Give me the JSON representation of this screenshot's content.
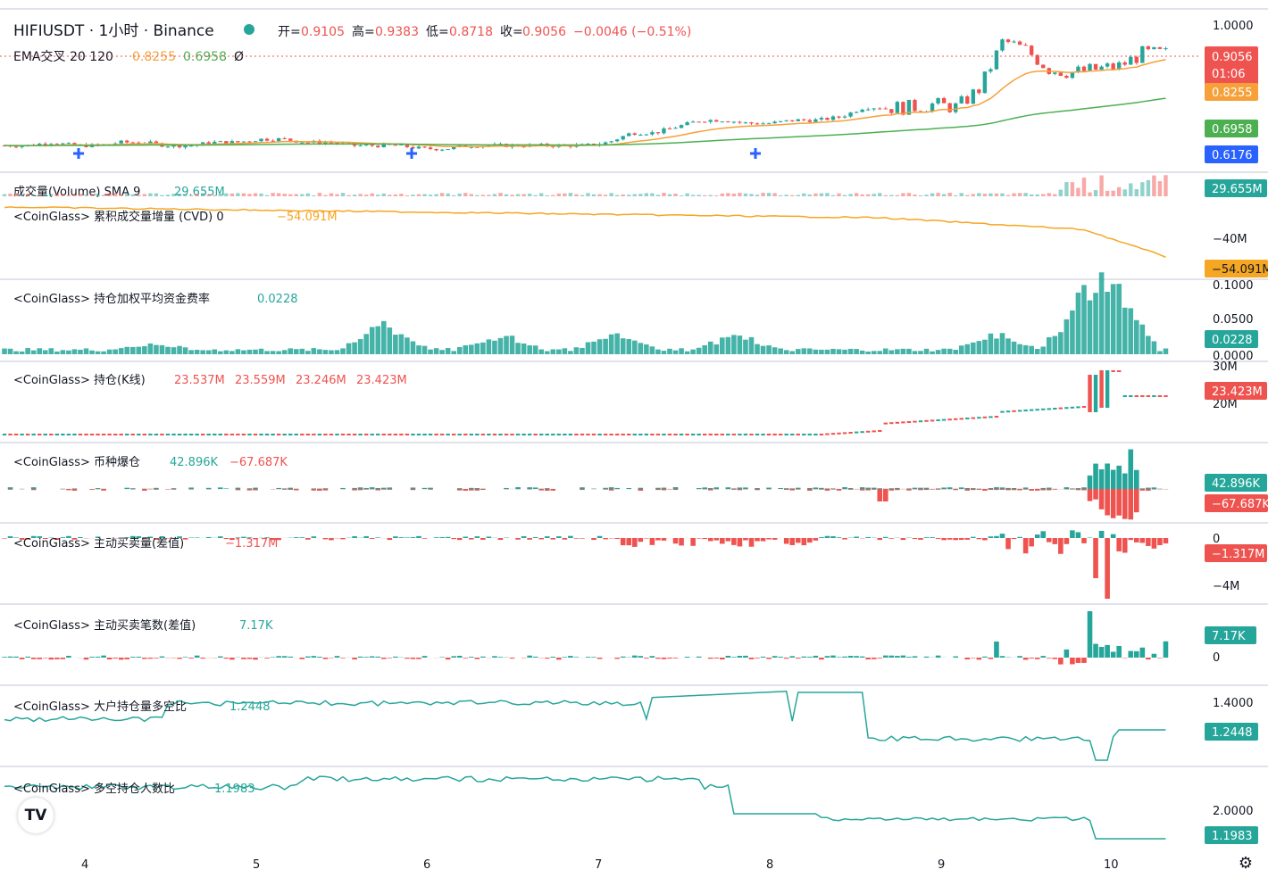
{
  "header": {
    "symbol": "HIFIUSDT · 1小时 · Binance",
    "ohlc": [
      {
        "label": "开=",
        "value": "0.9105"
      },
      {
        "label": "高=",
        "value": "0.9383"
      },
      {
        "label": "低=",
        "value": "0.8718"
      },
      {
        "label": "收=",
        "value": "0.9056"
      },
      {
        "label": "",
        "value": "−0.0046 (−0.51%)"
      }
    ],
    "ema_label": "EMA交叉 20 120",
    "ema_fast": "0.8255",
    "ema_slow": "0.6958",
    "ema_extra": "Ø"
  },
  "colors": {
    "up": "#26a69a",
    "down": "#ef5350",
    "ema_fast": "#f7a03a",
    "ema_slow": "#4caf50",
    "cvd": "#f5a623",
    "ratio": "#26a69a",
    "blue_tag": "#2962ff"
  },
  "chart_data": [
    {
      "type": "candlestick",
      "name": "HIFIUSDT",
      "x_ticks": [
        "4",
        "5",
        "6",
        "7",
        "8",
        "9",
        "10"
      ],
      "price_ticks": [
        "1.0000"
      ],
      "last_price": "0.9056",
      "countdown": "01:06",
      "markers": [
        "0.8255",
        "0.6958",
        "0.6176"
      ],
      "ohlc_last": {
        "open": 0.9105,
        "high": 0.9383,
        "low": 0.8718,
        "close": 0.9056
      },
      "closes": [
        0.62,
        0.62,
        0.63,
        0.62,
        0.62,
        0.63,
        0.63,
        0.62,
        0.62,
        0.63,
        0.63,
        0.64,
        0.64,
        0.63,
        0.63,
        0.62,
        0.62,
        0.62,
        0.61,
        0.61,
        0.62,
        0.62,
        0.62,
        0.62,
        0.62,
        0.62,
        0.63,
        0.66,
        0.66,
        0.68,
        0.7,
        0.7,
        0.69,
        0.69,
        0.7,
        0.7,
        0.71,
        0.74,
        0.74,
        0.74,
        0.75,
        0.74,
        0.8,
        0.95,
        0.92,
        0.86,
        0.85,
        0.86,
        0.87,
        0.91,
        0.91
      ]
    },
    {
      "type": "bar",
      "name": "成交量(Volume) SMA 9",
      "value_label": "29.655M",
      "value_tag": "29.655M"
    },
    {
      "type": "line",
      "name": "<CoinGlass> 累积成交量增量 (CVD) 0",
      "value_label": "−54.091M",
      "ticks": [
        "−40M"
      ],
      "value_tag": "−54.091M"
    },
    {
      "type": "bar",
      "name": "<CoinGlass> 持仓加权平均资金费率",
      "value_label": "0.0228",
      "ticks": [
        "0.1000",
        "0.0500",
        "0.0000"
      ],
      "value_tag": "0.0228"
    },
    {
      "type": "candlestick",
      "name": "<CoinGlass> 持仓(K线)",
      "values": [
        "23.537M",
        "23.559M",
        "23.246M",
        "23.423M"
      ],
      "ticks": [
        "30M",
        "20M"
      ],
      "value_tag": "23.423M"
    },
    {
      "type": "bar",
      "name": "<CoinGlass> 币种爆仓",
      "values": [
        "42.896K",
        "−67.687K"
      ],
      "tags": [
        "42.896K",
        "−67.687K"
      ]
    },
    {
      "type": "bar",
      "name": "<CoinGlass> 主动买卖量(差值)",
      "value_label": "−1.317M",
      "ticks": [
        "0",
        "−4M"
      ],
      "value_tag": "−1.317M"
    },
    {
      "type": "bar",
      "name": "<CoinGlass> 主动买卖笔数(差值)",
      "value_label": "7.17K",
      "ticks": [
        "0"
      ],
      "value_tag": "7.17K"
    },
    {
      "type": "line",
      "name": "<CoinGlass> 大户持仓量多空比",
      "value_label": "1.2448",
      "ticks": [
        "1.4000"
      ],
      "value_tag": "1.2448"
    },
    {
      "type": "line",
      "name": "<CoinGlass> 多空持仓人数比",
      "value_label": "1.1983",
      "ticks": [
        "2.0000"
      ],
      "value_tag": "1.1983"
    }
  ],
  "logo_text": "TV",
  "settings_icon": "gear-icon"
}
